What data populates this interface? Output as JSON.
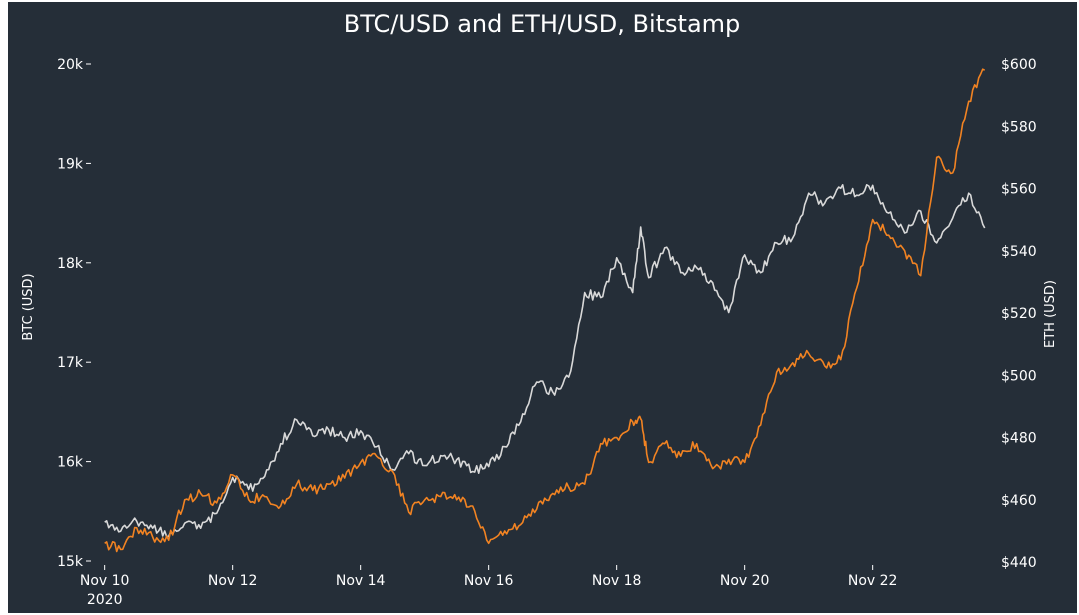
{
  "chart_data": {
    "type": "line",
    "title": "BTC/USD and ETH/USD, Bitstamp",
    "xlabel": "",
    "x_ticks": [
      "Nov 10",
      "Nov 12",
      "Nov 14",
      "Nov 16",
      "Nov 18",
      "Nov 20",
      "Nov 22"
    ],
    "x_tick_sublabel": "2020",
    "xlim": [
      "2020-11-09T20:00",
      "2020-11-23T20:00"
    ],
    "y_left": {
      "label": "BTC (USD)",
      "ticks": [
        "15k",
        "16k",
        "17k",
        "18k",
        "19k",
        "20k"
      ],
      "range": [
        14990,
        20000
      ]
    },
    "y_right": {
      "label": "ETH (USD)",
      "ticks": [
        "$440",
        "$460",
        "$480",
        "$500",
        "$520",
        "$540",
        "$560",
        "$580",
        "$600"
      ],
      "range": [
        440,
        600
      ]
    },
    "grid": false,
    "legend": "none",
    "series": [
      {
        "axis": "left",
        "color": "#d9d9d9",
        "points": [
          [
            "2020-11-10T00:00",
            15390
          ],
          [
            "2020-11-10T06:00",
            15300
          ],
          [
            "2020-11-10T12:00",
            15400
          ],
          [
            "2020-11-10T18:00",
            15330
          ],
          [
            "2020-11-11T00:00",
            15250
          ],
          [
            "2020-11-11T06:00",
            15380
          ],
          [
            "2020-11-11T12:00",
            15330
          ],
          [
            "2020-11-11T18:00",
            15480
          ],
          [
            "2020-11-12T00:00",
            15840
          ],
          [
            "2020-11-12T06:00",
            15720
          ],
          [
            "2020-11-12T12:00",
            15850
          ],
          [
            "2020-11-12T18:00",
            16180
          ],
          [
            "2020-11-13T00:00",
            16420
          ],
          [
            "2020-11-13T06:00",
            16260
          ],
          [
            "2020-11-13T12:00",
            16320
          ],
          [
            "2020-11-13T18:00",
            16240
          ],
          [
            "2020-11-14T00:00",
            16310
          ],
          [
            "2020-11-14T06:00",
            16150
          ],
          [
            "2020-11-14T12:00",
            15920
          ],
          [
            "2020-11-14T18:00",
            16080
          ],
          [
            "2020-11-15T00:00",
            15960
          ],
          [
            "2020-11-15T06:00",
            16060
          ],
          [
            "2020-11-15T12:00",
            16020
          ],
          [
            "2020-11-15T18:00",
            15900
          ],
          [
            "2020-11-16T00:00",
            15950
          ],
          [
            "2020-11-16T06:00",
            16150
          ],
          [
            "2020-11-16T12:00",
            16400
          ],
          [
            "2020-11-16T18:00",
            16800
          ],
          [
            "2020-11-17T00:00",
            16700
          ],
          [
            "2020-11-17T06:00",
            16850
          ],
          [
            "2020-11-17T12:00",
            17700
          ],
          [
            "2020-11-17T18:00",
            17650
          ],
          [
            "2020-11-18T00:00",
            18050
          ],
          [
            "2020-11-18T06:00",
            17700
          ],
          [
            "2020-11-18T09:00",
            18360
          ],
          [
            "2020-11-18T12:00",
            17850
          ],
          [
            "2020-11-18T18:00",
            18150
          ],
          [
            "2020-11-19T00:00",
            17900
          ],
          [
            "2020-11-19T06:00",
            17950
          ],
          [
            "2020-11-19T12:00",
            17800
          ],
          [
            "2020-11-19T18:00",
            17500
          ],
          [
            "2020-11-20T00:00",
            18080
          ],
          [
            "2020-11-20T06:00",
            17900
          ],
          [
            "2020-11-20T12:00",
            18200
          ],
          [
            "2020-11-20T18:00",
            18250
          ],
          [
            "2020-11-21T00:00",
            18700
          ],
          [
            "2020-11-21T06:00",
            18600
          ],
          [
            "2020-11-21T12:00",
            18750
          ],
          [
            "2020-11-21T18:00",
            18680
          ],
          [
            "2020-11-22T00:00",
            18780
          ],
          [
            "2020-11-22T06:00",
            18500
          ],
          [
            "2020-11-22T12:00",
            18300
          ],
          [
            "2020-11-22T18:00",
            18520
          ],
          [
            "2020-11-23T00:00",
            18200
          ],
          [
            "2020-11-23T06:00",
            18450
          ],
          [
            "2020-11-23T12:00",
            18700
          ],
          [
            "2020-11-23T18:00",
            18350
          ]
        ]
      },
      {
        "axis": "right",
        "color": "#f28322",
        "points": [
          [
            "2020-11-10T00:00",
            446
          ],
          [
            "2020-11-10T06:00",
            444
          ],
          [
            "2020-11-10T12:00",
            451
          ],
          [
            "2020-11-10T18:00",
            448
          ],
          [
            "2020-11-11T00:00",
            447
          ],
          [
            "2020-11-11T06:00",
            460
          ],
          [
            "2020-11-11T12:00",
            462
          ],
          [
            "2020-11-11T18:00",
            459
          ],
          [
            "2020-11-12T00:00",
            468
          ],
          [
            "2020-11-12T06:00",
            460
          ],
          [
            "2020-11-12T12:00",
            461
          ],
          [
            "2020-11-12T18:00",
            458
          ],
          [
            "2020-11-13T00:00",
            465
          ],
          [
            "2020-11-13T06:00",
            463
          ],
          [
            "2020-11-13T12:00",
            465
          ],
          [
            "2020-11-13T18:00",
            467
          ],
          [
            "2020-11-14T00:00",
            472
          ],
          [
            "2020-11-14T06:00",
            474
          ],
          [
            "2020-11-14T12:00",
            469
          ],
          [
            "2020-11-14T18:00",
            456
          ],
          [
            "2020-11-15T00:00",
            460
          ],
          [
            "2020-11-15T06:00",
            461
          ],
          [
            "2020-11-15T12:00",
            460
          ],
          [
            "2020-11-15T18:00",
            458
          ],
          [
            "2020-11-16T00:00",
            446
          ],
          [
            "2020-11-16T06:00",
            450
          ],
          [
            "2020-11-16T12:00",
            452
          ],
          [
            "2020-11-16T18:00",
            457
          ],
          [
            "2020-11-17T00:00",
            462
          ],
          [
            "2020-11-17T06:00",
            464
          ],
          [
            "2020-11-17T12:00",
            465
          ],
          [
            "2020-11-17T18:00",
            478
          ],
          [
            "2020-11-18T00:00",
            480
          ],
          [
            "2020-11-18T06:00",
            485
          ],
          [
            "2020-11-18T09:00",
            486
          ],
          [
            "2020-11-18T12:00",
            472
          ],
          [
            "2020-11-18T18:00",
            478
          ],
          [
            "2020-11-19T00:00",
            474
          ],
          [
            "2020-11-19T06:00",
            478
          ],
          [
            "2020-11-19T12:00",
            470
          ],
          [
            "2020-11-19T18:00",
            473
          ],
          [
            "2020-11-20T00:00",
            472
          ],
          [
            "2020-11-20T06:00",
            484
          ],
          [
            "2020-11-20T12:00",
            501
          ],
          [
            "2020-11-20T18:00",
            504
          ],
          [
            "2020-11-21T00:00",
            507
          ],
          [
            "2020-11-21T06:00",
            503
          ],
          [
            "2020-11-21T12:00",
            505
          ],
          [
            "2020-11-21T18:00",
            528
          ],
          [
            "2020-11-22T00:00",
            550
          ],
          [
            "2020-11-22T06:00",
            545
          ],
          [
            "2020-11-22T12:00",
            540
          ],
          [
            "2020-11-22T18:00",
            532
          ],
          [
            "2020-11-23T00:00",
            570
          ],
          [
            "2020-11-23T06:00",
            565
          ],
          [
            "2020-11-23T12:00",
            588
          ],
          [
            "2020-11-23T18:00",
            598
          ]
        ]
      }
    ]
  }
}
